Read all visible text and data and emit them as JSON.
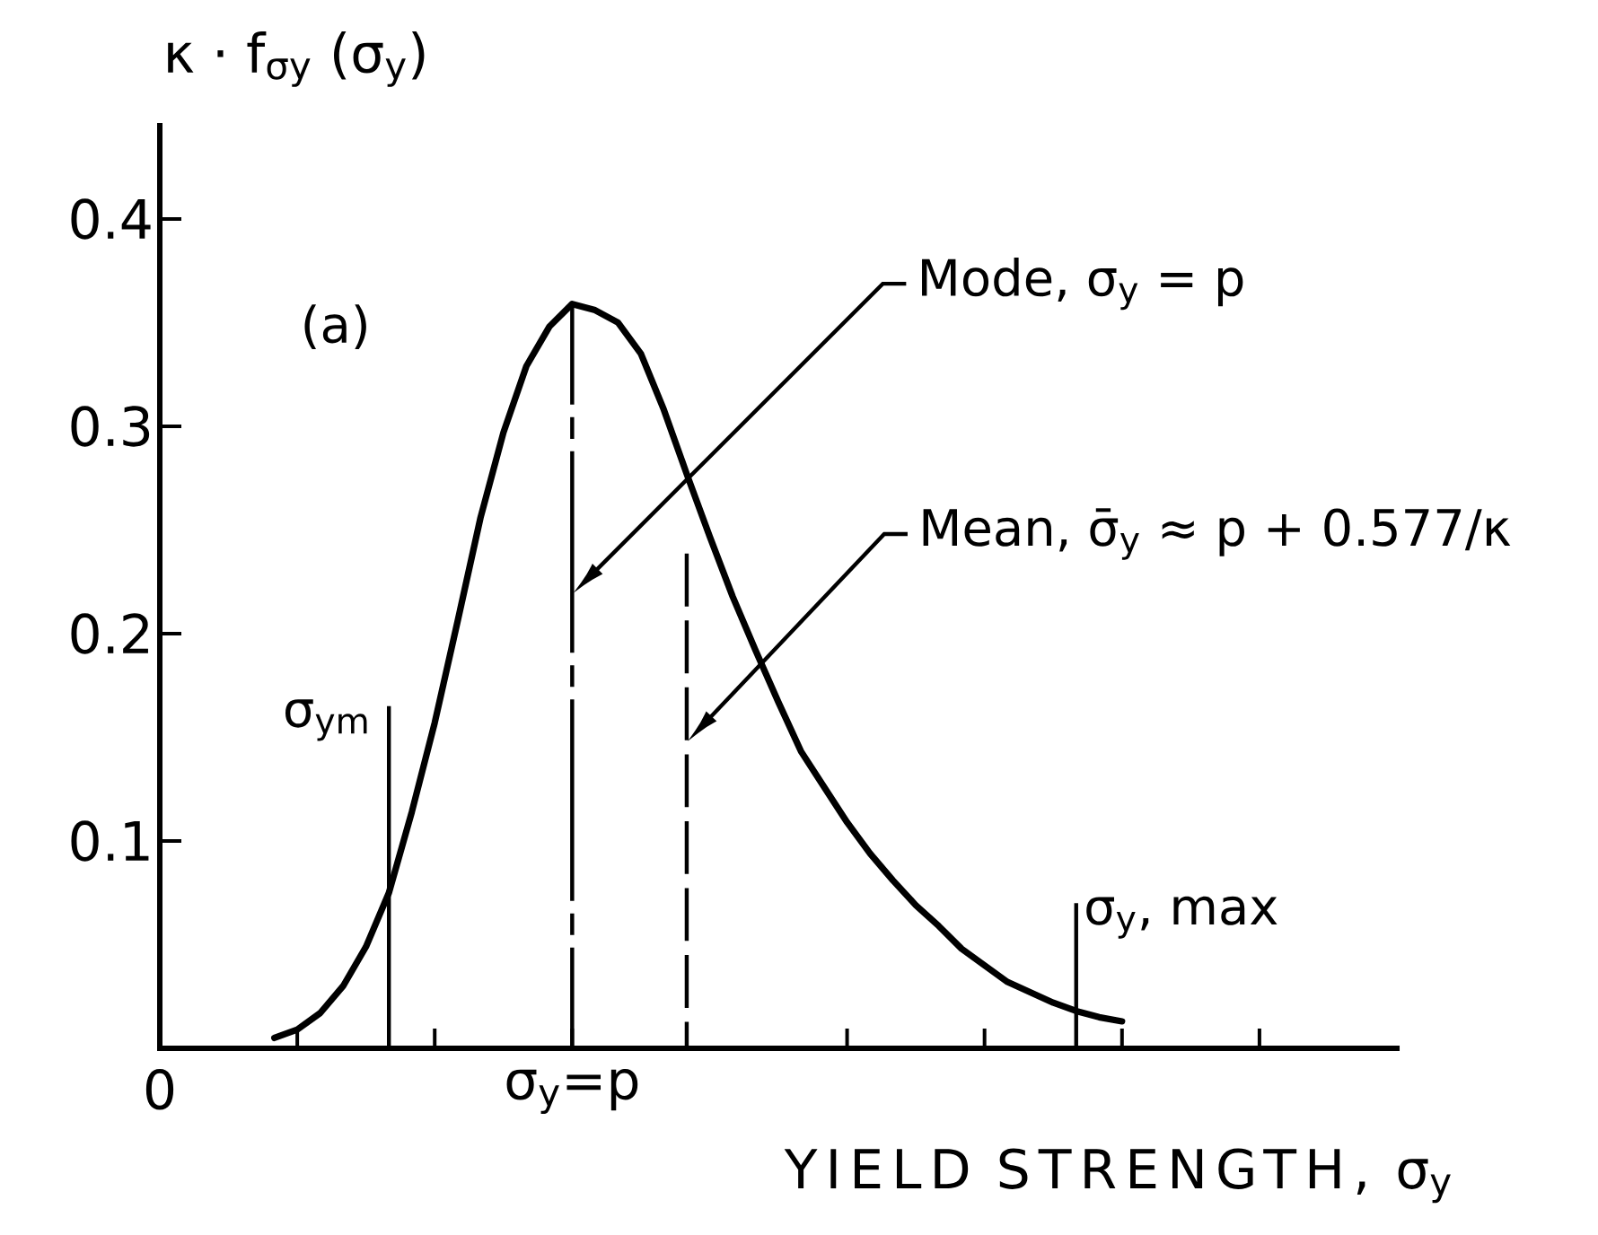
{
  "chart_data": {
    "type": "line",
    "xlabel": "YIELD STRENGTH, σ$_{y}$",
    "ylabel": "κ · f$_{σy}$ (σ$_{y}$)",
    "ylim": [
      0,
      0.445
    ],
    "yticks": [
      0.1,
      0.2,
      0.3,
      0.4
    ],
    "categories": [
      "0",
      null,
      null,
      null,
      null,
      null,
      null,
      null,
      null,
      null,
      null,
      null,
      null,
      null,
      null,
      null,
      null,
      null,
      "σ$_{y}$=p",
      null,
      null,
      null,
      null,
      null,
      null,
      null,
      null,
      null,
      null,
      null,
      null,
      null,
      null,
      null,
      null,
      null,
      null,
      null,
      null,
      null,
      null,
      null,
      null,
      null,
      null,
      null,
      null,
      null,
      null,
      null,
      null,
      null,
      null,
      null,
      null
    ],
    "annotations": [
      "(a)",
      "Mode, σ$_{y}$ = p",
      "Mean, σ̄$_{y}$ ≈ p + 0.577/κ"
    ],
    "series": [
      {
        "color": "#000000",
        "values": [
          null,
          null,
          null,
          null,
          null,
          0.005,
          0.009,
          0.017,
          0.03,
          0.049,
          0.075,
          0.114,
          0.157,
          0.206,
          0.256,
          0.297,
          0.329,
          0.348,
          0.359,
          0.356,
          0.35,
          0.335,
          0.308,
          0.277,
          0.247,
          0.218,
          0.192,
          0.167,
          0.143,
          0.126,
          0.109,
          0.094,
          0.081,
          0.069,
          0.059,
          0.048,
          0.04,
          0.032,
          0.027,
          0.022,
          0.018,
          0.015,
          0.013,
          null,
          null,
          null,
          null,
          null,
          null,
          null,
          null,
          null,
          null,
          null,
          null
        ]
      },
      {
        "type": "bar",
        "color": "#000000",
        "line_style": "dashdot",
        "values": [
          null,
          null,
          null,
          null,
          null,
          null,
          null,
          null,
          null,
          null,
          null,
          null,
          null,
          null,
          null,
          null,
          null,
          null,
          0.359,
          null,
          null,
          null,
          null,
          null,
          null,
          null,
          null,
          null,
          null,
          null,
          null,
          null,
          null,
          null,
          null,
          null,
          null,
          null,
          null,
          null,
          null,
          null,
          null,
          null,
          null,
          null,
          null,
          null,
          null,
          null,
          null,
          null,
          null,
          null,
          null
        ]
      },
      {
        "type": "bar",
        "color": "#000000",
        "line_style": "dashed",
        "values": [
          null,
          null,
          null,
          null,
          null,
          null,
          null,
          null,
          null,
          null,
          null,
          null,
          null,
          null,
          null,
          null,
          null,
          null,
          null,
          null,
          null,
          null,
          null,
          0.242,
          null,
          null,
          null,
          null,
          null,
          null,
          null,
          null,
          null,
          null,
          null,
          null,
          null,
          null,
          null,
          null,
          null,
          null,
          null,
          null,
          null,
          null,
          null,
          null,
          null,
          null,
          null,
          null,
          null,
          null,
          null
        ]
      },
      {
        "type": "bar",
        "name": "σ$_{ym}$",
        "color": "#000000",
        "values": [
          null,
          null,
          null,
          null,
          null,
          null,
          null,
          null,
          null,
          null,
          0.165,
          null,
          null,
          null,
          null,
          null,
          null,
          null,
          null,
          null,
          null,
          null,
          null,
          null,
          null,
          null,
          null,
          null,
          null,
          null,
          null,
          null,
          null,
          null,
          null,
          null,
          null,
          null,
          null,
          null,
          null,
          null,
          null,
          null,
          null,
          null,
          null,
          null,
          null,
          null,
          null,
          null,
          null,
          null,
          null
        ]
      },
      {
        "type": "bar",
        "name": "σ$_{y}$, max",
        "color": "#000000",
        "values": [
          null,
          null,
          null,
          null,
          null,
          null,
          null,
          null,
          null,
          null,
          null,
          null,
          null,
          null,
          null,
          null,
          null,
          null,
          null,
          null,
          null,
          null,
          null,
          null,
          null,
          null,
          null,
          null,
          null,
          null,
          null,
          null,
          null,
          null,
          null,
          null,
          null,
          null,
          null,
          null,
          0.07,
          null,
          null,
          null,
          null,
          null,
          null,
          null,
          null,
          null,
          null,
          null,
          null,
          null,
          null
        ]
      }
    ]
  }
}
